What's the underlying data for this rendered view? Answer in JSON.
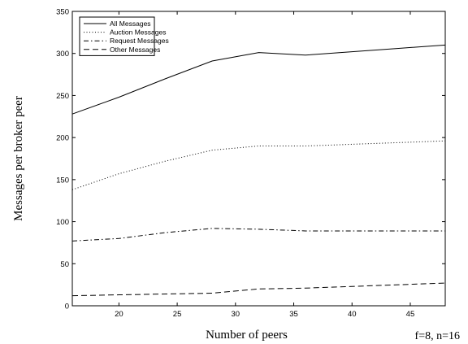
{
  "chart_data": {
    "type": "line",
    "xlabel": "Number of peers",
    "ylabel": "Messages per broker peer",
    "annotation": "f=8, n=16",
    "xlim": [
      16,
      48
    ],
    "ylim": [
      0,
      350
    ],
    "xticks": [
      20,
      25,
      30,
      35,
      40,
      45
    ],
    "yticks": [
      0,
      50,
      100,
      150,
      200,
      250,
      300,
      350
    ],
    "grid": false,
    "legend_position": "top-left",
    "series": [
      {
        "name": "All Messages",
        "style": "solid",
        "color": "#000000",
        "x": [
          16,
          20,
          24,
          28,
          32,
          36,
          40,
          44,
          48
        ],
        "y": [
          228,
          248,
          270,
          291,
          301,
          298,
          302,
          306,
          310
        ]
      },
      {
        "name": "Auction Messages",
        "style": "dotted",
        "color": "#000000",
        "x": [
          16,
          20,
          24,
          28,
          32,
          36,
          40,
          44,
          48
        ],
        "y": [
          138,
          157,
          172,
          185,
          190,
          190,
          192,
          194,
          196
        ]
      },
      {
        "name": "Request Messages",
        "style": "dashdot",
        "color": "#000000",
        "x": [
          16,
          20,
          24,
          28,
          32,
          36,
          40,
          44,
          48
        ],
        "y": [
          77,
          80,
          87,
          92,
          91,
          89,
          89,
          89,
          89
        ]
      },
      {
        "name": "Other Messages",
        "style": "dashed",
        "color": "#000000",
        "x": [
          16,
          20,
          24,
          28,
          32,
          36,
          40,
          44,
          48
        ],
        "y": [
          12,
          13,
          14,
          15,
          20,
          21,
          23,
          25,
          27
        ]
      }
    ]
  }
}
